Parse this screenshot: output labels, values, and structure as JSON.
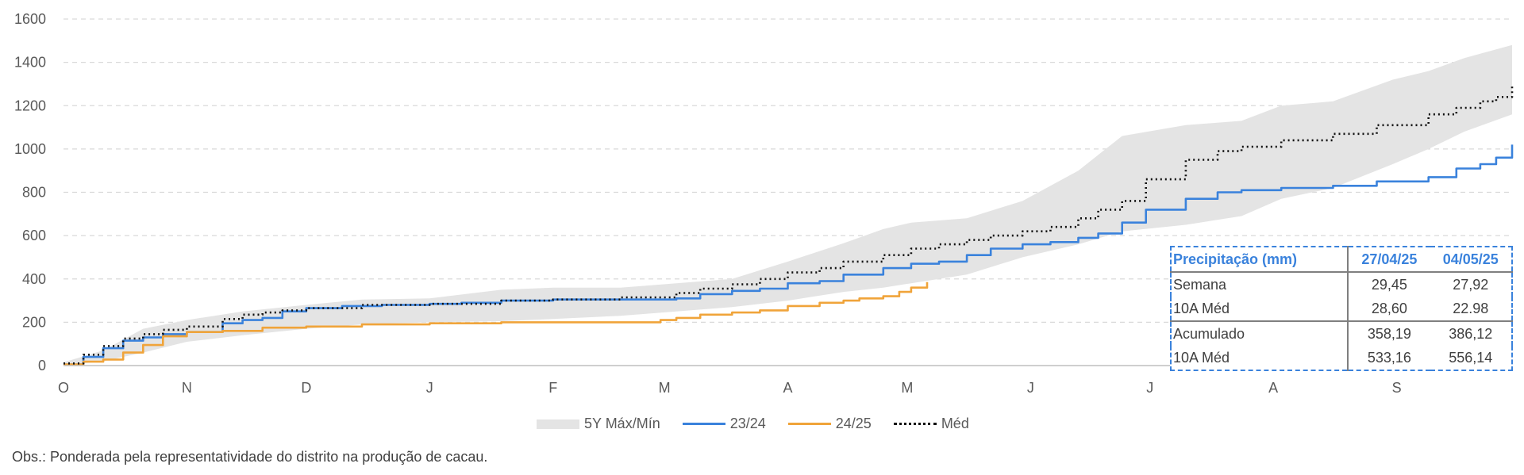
{
  "chart_data": {
    "type": "area",
    "ylim": [
      0,
      1600
    ],
    "yticks": [
      "0",
      "200",
      "400",
      "600",
      "800",
      "1000",
      "1200",
      "1400",
      "1600"
    ],
    "month_labels": [
      "O",
      "N",
      "D",
      "J",
      "F",
      "M",
      "A",
      "M",
      "J",
      "J",
      "A",
      "S"
    ],
    "x_index_range": [
      0,
      364
    ],
    "grid": "horizontal dashed",
    "legend_position": "bottom",
    "band": {
      "name": "5Y Máx/Mín",
      "color": "#e4e4e4",
      "x": [
        0,
        10,
        20,
        31,
        45,
        61,
        75,
        92,
        110,
        123,
        140,
        154,
        168,
        182,
        196,
        206,
        213,
        227,
        241,
        255,
        266,
        282,
        296,
        306,
        319,
        334,
        343,
        352,
        364
      ],
      "upper": [
        15,
        70,
        170,
        210,
        250,
        280,
        305,
        310,
        350,
        360,
        360,
        380,
        400,
        480,
        565,
        630,
        660,
        680,
        760,
        900,
        1060,
        1110,
        1130,
        1200,
        1220,
        1320,
        1360,
        1420,
        1480
      ],
      "lower": [
        0,
        20,
        60,
        110,
        140,
        170,
        190,
        200,
        205,
        215,
        230,
        250,
        270,
        300,
        340,
        360,
        380,
        420,
        500,
        560,
        620,
        650,
        690,
        770,
        820,
        930,
        1000,
        1080,
        1160
      ]
    },
    "series": [
      {
        "name": "23/24",
        "color": "#3a82dc",
        "style": "solid",
        "x": [
          0,
          5,
          10,
          15,
          20,
          25,
          31,
          40,
          45,
          50,
          55,
          61,
          70,
          80,
          92,
          100,
          110,
          123,
          130,
          140,
          154,
          160,
          168,
          175,
          182,
          190,
          196,
          206,
          213,
          220,
          227,
          233,
          241,
          248,
          255,
          260,
          266,
          272,
          282,
          290,
          296,
          306,
          319,
          330,
          343,
          350,
          356,
          360,
          364
        ],
        "values": [
          5,
          40,
          80,
          115,
          130,
          145,
          155,
          195,
          210,
          220,
          250,
          265,
          275,
          280,
          285,
          290,
          300,
          305,
          305,
          305,
          310,
          330,
          345,
          355,
          380,
          390,
          420,
          450,
          470,
          480,
          510,
          540,
          560,
          570,
          590,
          610,
          660,
          720,
          770,
          800,
          810,
          820,
          830,
          850,
          870,
          910,
          930,
          960,
          1020
        ]
      },
      {
        "name": "24/25",
        "color": "#f0a43a",
        "style": "solid",
        "x": [
          0,
          5,
          10,
          15,
          20,
          25,
          31,
          40,
          50,
          61,
          75,
          92,
          110,
          123,
          140,
          150,
          154,
          160,
          168,
          175,
          182,
          190,
          196,
          200,
          206,
          210,
          213,
          217
        ],
        "values": [
          5,
          18,
          28,
          60,
          95,
          135,
          155,
          160,
          175,
          180,
          190,
          195,
          200,
          200,
          200,
          210,
          220,
          235,
          245,
          255,
          275,
          290,
          300,
          310,
          320,
          340,
          360,
          385
        ]
      },
      {
        "name": "Méd",
        "color": "#111111",
        "style": "dotted",
        "x": [
          0,
          5,
          10,
          15,
          20,
          25,
          31,
          40,
          45,
          50,
          55,
          61,
          75,
          92,
          110,
          123,
          140,
          154,
          160,
          168,
          175,
          182,
          190,
          196,
          206,
          213,
          220,
          227,
          233,
          241,
          248,
          255,
          260,
          266,
          272,
          282,
          290,
          296,
          306,
          319,
          330,
          343,
          350,
          356,
          360,
          364
        ],
        "values": [
          10,
          50,
          90,
          125,
          145,
          165,
          180,
          215,
          235,
          245,
          255,
          265,
          280,
          285,
          300,
          305,
          315,
          335,
          355,
          375,
          400,
          430,
          450,
          480,
          510,
          540,
          560,
          580,
          600,
          620,
          640,
          680,
          720,
          760,
          860,
          950,
          990,
          1010,
          1040,
          1070,
          1110,
          1160,
          1190,
          1220,
          1240,
          1300
        ]
      }
    ]
  },
  "legend": {
    "band_label": "5Y Máx/Mín",
    "s1_label": "23/24",
    "s2_label": "24/25",
    "s3_label": "Méd"
  },
  "table": {
    "header": [
      "Precipitação (mm)",
      "27/04/25",
      "04/05/25"
    ],
    "rows": [
      [
        "Semana",
        "29,45",
        "27,92"
      ],
      [
        "10A Méd",
        "28,60",
        "22.98"
      ],
      [
        "Acumulado",
        "358,19",
        "386,12"
      ],
      [
        "10A Méd",
        "533,16",
        "556,14"
      ]
    ]
  },
  "note": "Obs.: Ponderada pela representatividade do distrito na produção de cacau."
}
